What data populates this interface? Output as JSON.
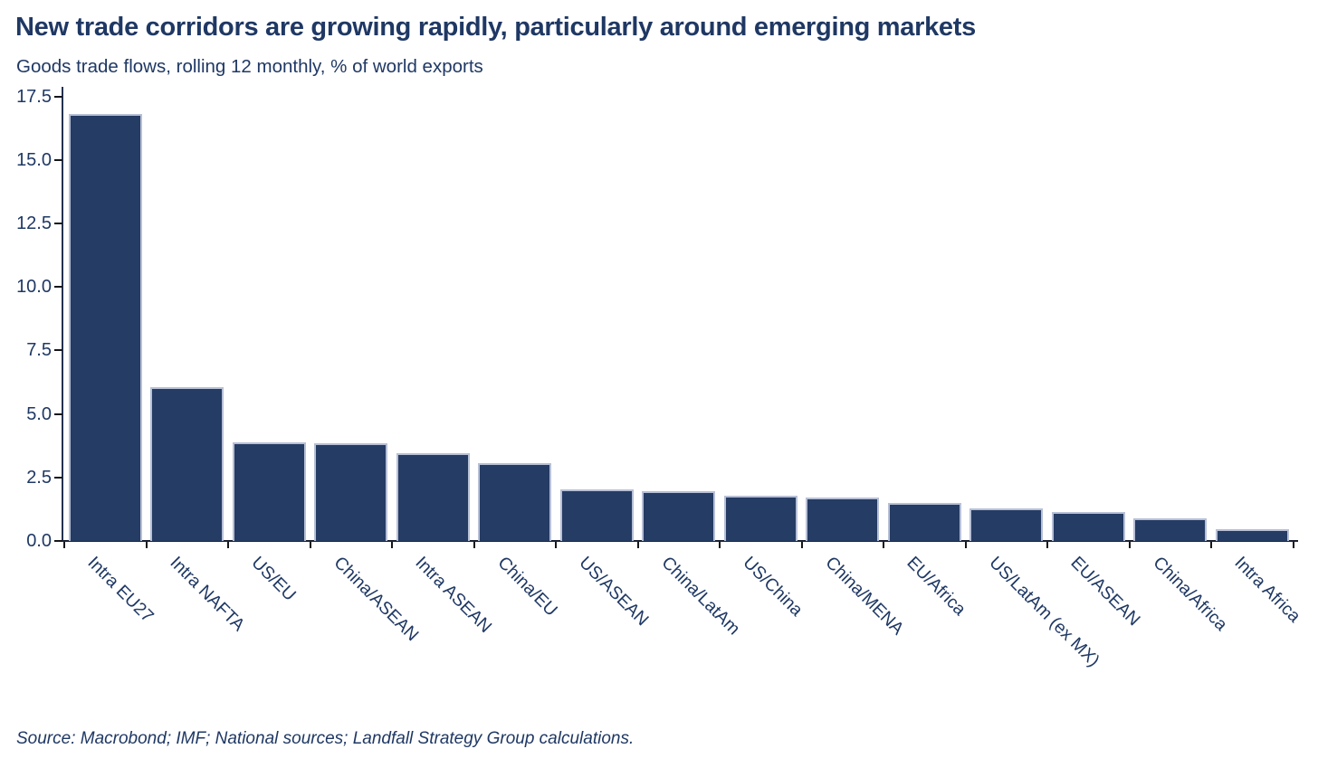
{
  "header": {
    "title": "New trade corridors are growing rapidly, particularly around emerging markets",
    "subtitle": "Goods trade flows, rolling 12 monthly, % of world exports"
  },
  "chart_data": {
    "type": "bar",
    "title": "New trade corridors are growing rapidly, particularly around emerging markets",
    "subtitle": "Goods trade flows, rolling 12 monthly, % of world exports",
    "categories": [
      "Intra EU27",
      "Intra NAFTA",
      "US/EU",
      "China/ASEAN",
      "Intra ASEAN",
      "China/EU",
      "US/ASEAN",
      "China/LatAm",
      "US/China",
      "China/MENA",
      "EU/Africa",
      "US/LatAm (ex MX)",
      "EU/ASEAN",
      "China/Africa",
      "Intra Africa"
    ],
    "values": [
      16.8,
      6.05,
      3.9,
      3.85,
      3.45,
      3.05,
      2.05,
      1.95,
      1.8,
      1.7,
      1.5,
      1.3,
      1.15,
      0.9,
      0.45
    ],
    "xlabel": "",
    "ylabel": "",
    "ylim": [
      0,
      17.85
    ],
    "ytick_labels": [
      "0.0",
      "2.5",
      "5.0",
      "7.5",
      "10.0",
      "12.5",
      "15.0",
      "17.5"
    ],
    "yticks": [
      0,
      2.5,
      5,
      7.5,
      10,
      12.5,
      15,
      17.5
    ],
    "grid": false,
    "legend": false,
    "xtick_label_rotation_deg": 45,
    "bar_color": "#253c64",
    "bar_edge_color": "#b7c0d6"
  },
  "source": {
    "text": "Source: Macrobond; IMF; National sources; Landfall Strategy Group calculations."
  },
  "colors": {
    "title_text": "#1f3864",
    "tick_label_text": "#1f3864",
    "axis_line": "#1a2133",
    "bar_fill": "#253c64",
    "bar_edge": "#b7c0d6",
    "background": "#ffffff"
  }
}
